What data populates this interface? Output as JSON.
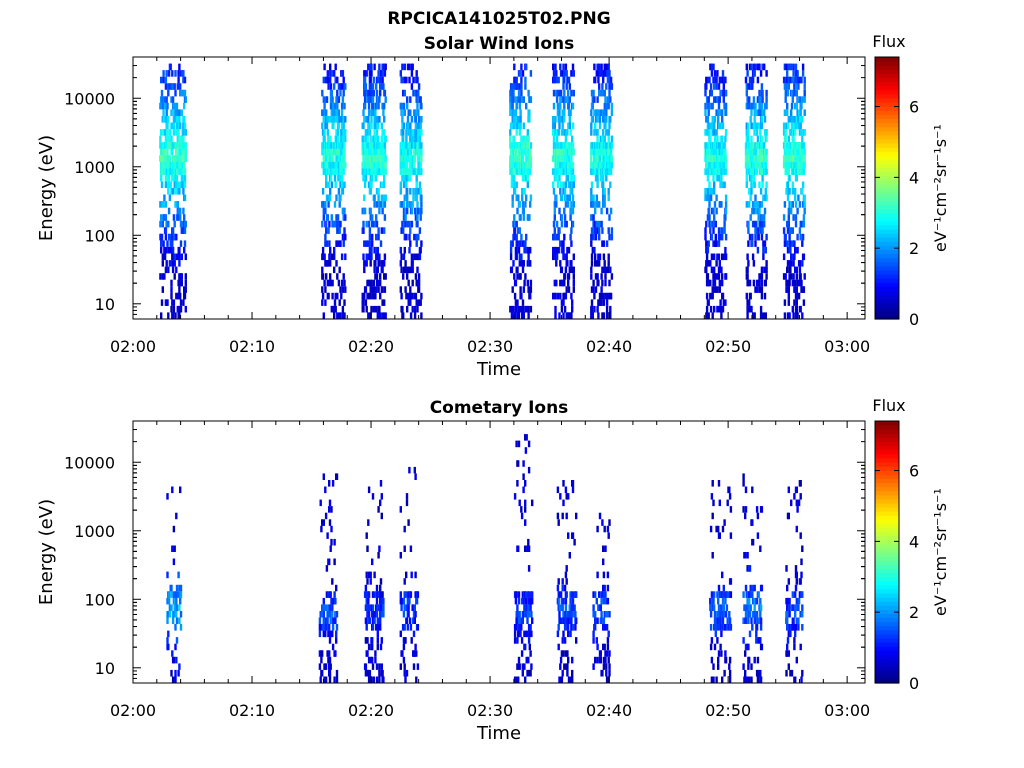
{
  "figure_title": "RPCICA141025T02.PNG",
  "chart_data": [
    {
      "type": "heatmap",
      "title": "Solar Wind Ions",
      "xlabel": "Time",
      "ylabel": "Energy (eV)",
      "x_ticks": [
        "02:00",
        "02:10",
        "02:20",
        "02:30",
        "02:40",
        "02:50",
        "03:00"
      ],
      "x_range_minutes": [
        0,
        61.5
      ],
      "y_scale": "log",
      "y_ticks": [
        10,
        100,
        1000,
        10000
      ],
      "y_tick_labels": [
        "10",
        "100",
        "1000",
        "10000"
      ],
      "y_range": [
        6,
        40000
      ],
      "colorbar": {
        "label": "Flux",
        "units": "eV⁻¹cm⁻²sr⁻¹s⁻¹",
        "range": [
          0,
          7.4
        ],
        "ticks": [
          0,
          2,
          4,
          6
        ],
        "colormap": "jet"
      },
      "bursts": [
        {
          "time_min": 2.2,
          "width_min": 2.2,
          "core_energy_eV": 1400,
          "core_flux": 3.2,
          "upper_energy_eV": 35000
        },
        {
          "time_min": 15.8,
          "width_min": 2.0,
          "core_energy_eV": 1400,
          "core_flux": 3.0,
          "upper_energy_eV": 30000
        },
        {
          "time_min": 19.2,
          "width_min": 2.0,
          "core_energy_eV": 1300,
          "core_flux": 3.1,
          "upper_energy_eV": 35000
        },
        {
          "time_min": 22.4,
          "width_min": 1.8,
          "core_energy_eV": 1300,
          "core_flux": 3.0,
          "upper_energy_eV": 35000
        },
        {
          "time_min": 31.6,
          "width_min": 1.8,
          "core_energy_eV": 1400,
          "core_flux": 3.2,
          "upper_energy_eV": 30000
        },
        {
          "time_min": 35.2,
          "width_min": 1.8,
          "core_energy_eV": 1400,
          "core_flux": 3.1,
          "upper_energy_eV": 35000
        },
        {
          "time_min": 38.4,
          "width_min": 1.8,
          "core_energy_eV": 1400,
          "core_flux": 3.0,
          "upper_energy_eV": 30000
        },
        {
          "time_min": 48.0,
          "width_min": 1.8,
          "core_energy_eV": 1300,
          "core_flux": 3.0,
          "upper_energy_eV": 30000
        },
        {
          "time_min": 51.4,
          "width_min": 1.8,
          "core_energy_eV": 1300,
          "core_flux": 3.1,
          "upper_energy_eV": 30000
        },
        {
          "time_min": 54.6,
          "width_min": 1.8,
          "core_energy_eV": 1400,
          "core_flux": 3.2,
          "upper_energy_eV": 30000
        }
      ]
    },
    {
      "type": "heatmap",
      "title": "Cometary Ions",
      "xlabel": "Time",
      "ylabel": "Energy (eV)",
      "x_ticks": [
        "02:00",
        "02:10",
        "02:20",
        "02:30",
        "02:40",
        "02:50",
        "03:00"
      ],
      "x_range_minutes": [
        0,
        61.5
      ],
      "y_scale": "log",
      "y_ticks": [
        10,
        100,
        1000,
        10000
      ],
      "y_tick_labels": [
        "10",
        "100",
        "1000",
        "10000"
      ],
      "y_range": [
        6,
        40000
      ],
      "colorbar": {
        "label": "Flux",
        "units": "eV⁻¹cm⁻²sr⁻¹s⁻¹",
        "range": [
          0,
          7.4
        ],
        "ticks": [
          0,
          2,
          4,
          6
        ],
        "colormap": "jet"
      },
      "bursts": [
        {
          "time_min": 2.8,
          "width_min": 1.2,
          "core_energy_eV": 80,
          "core_flux": 2.2,
          "upper_energy_eV": 4000
        },
        {
          "time_min": 15.6,
          "width_min": 1.5,
          "core_energy_eV": 60,
          "core_flux": 1.5,
          "upper_energy_eV": 6500
        },
        {
          "time_min": 19.4,
          "width_min": 1.6,
          "core_energy_eV": 70,
          "core_flux": 1.3,
          "upper_energy_eV": 7000
        },
        {
          "time_min": 22.4,
          "width_min": 1.5,
          "core_energy_eV": 70,
          "core_flux": 1.4,
          "upper_energy_eV": 8000
        },
        {
          "time_min": 32.0,
          "width_min": 1.5,
          "core_energy_eV": 60,
          "core_flux": 1.4,
          "upper_energy_eV": 25000
        },
        {
          "time_min": 35.6,
          "width_min": 1.6,
          "core_energy_eV": 70,
          "core_flux": 1.5,
          "upper_energy_eV": 5000
        },
        {
          "time_min": 38.6,
          "width_min": 1.4,
          "core_energy_eV": 70,
          "core_flux": 1.5,
          "upper_energy_eV": 2000
        },
        {
          "time_min": 48.4,
          "width_min": 1.8,
          "core_energy_eV": 70,
          "core_flux": 1.6,
          "upper_energy_eV": 6000
        },
        {
          "time_min": 51.2,
          "width_min": 1.6,
          "core_energy_eV": 80,
          "core_flux": 1.8,
          "upper_energy_eV": 7000
        },
        {
          "time_min": 54.8,
          "width_min": 1.4,
          "core_energy_eV": 70,
          "core_flux": 1.5,
          "upper_energy_eV": 5000
        }
      ]
    }
  ]
}
